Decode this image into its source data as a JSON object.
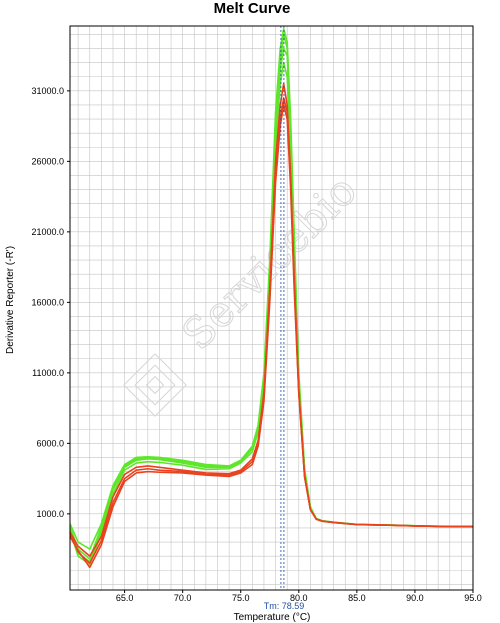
{
  "chart_data": {
    "type": "line",
    "title": "Melt Curve",
    "xlabel": "Temperature (°C)",
    "ylabel": "Derivative Reporter (-R')",
    "xlim": [
      60.3,
      95.0
    ],
    "ylim": [
      -4400,
      35600
    ],
    "x_ticks": [
      "65.0",
      "70.0",
      "75.0",
      "80.0",
      "85.0",
      "90.0",
      "95.0"
    ],
    "y_ticks": [
      "1000.0",
      "6000.0",
      "11000.0",
      "16000.0",
      "21000.0",
      "26000.0",
      "31000.0"
    ],
    "grid": true,
    "tm_marker": {
      "label": "Tm: 78.59",
      "x": 78.59
    },
    "watermark": "Servicebio",
    "colors": {
      "green": "#5ee62a",
      "red": "#e8421f",
      "marker": "#1f4fa8",
      "grid": "#c4c4c4"
    },
    "series": [
      {
        "color": "#5ee62a",
        "x": [
          60.3,
          61.0,
          62.0,
          63.0,
          64.0,
          65.0,
          66.0,
          67.0,
          68.0,
          70.0,
          72.0,
          74.0,
          75.0,
          76.0,
          76.5,
          77.0,
          77.5,
          78.0,
          78.4,
          78.7,
          79.0,
          79.3,
          79.6,
          80.0,
          80.5,
          81.0,
          81.5,
          82.0,
          83.0,
          85.0,
          88.0,
          90.0,
          92.0,
          95.0
        ],
        "y": [
          0,
          -1800,
          -2400,
          -100,
          2700,
          4300,
          4800,
          4900,
          4850,
          4600,
          4300,
          4300,
          4700,
          5600,
          7000,
          10500,
          18000,
          28000,
          33000,
          35000,
          34000,
          28000,
          20000,
          10500,
          4000,
          1400,
          650,
          500,
          400,
          250,
          200,
          150,
          120,
          100
        ]
      },
      {
        "color": "#e8421f",
        "x": [
          60.3,
          61.0,
          62.0,
          63.0,
          64.0,
          65.0,
          66.0,
          67.0,
          68.0,
          70.0,
          72.0,
          74.0,
          75.0,
          76.0,
          76.5,
          77.0,
          77.5,
          78.0,
          78.4,
          78.7,
          79.0,
          79.3,
          79.6,
          80.0,
          80.5,
          81.0,
          81.5,
          82.0,
          83.0,
          85.0,
          88.0,
          90.0,
          92.0,
          95.0
        ],
        "y": [
          -600,
          -1600,
          -2800,
          -1200,
          1500,
          3300,
          3900,
          4000,
          3950,
          3900,
          3750,
          3650,
          3900,
          4500,
          5800,
          9000,
          16000,
          24500,
          28500,
          30000,
          29000,
          24000,
          17000,
          9500,
          3600,
          1300,
          620,
          480,
          380,
          240,
          190,
          140,
          110,
          100
        ]
      },
      {
        "color": "#e8421f",
        "x": [
          60.3,
          61.0,
          62.0,
          63.0,
          64.0,
          65.0,
          66.0,
          67.0,
          68.0,
          70.0,
          72.0,
          74.0,
          75.0,
          76.0,
          76.5,
          77.0,
          77.5,
          78.0,
          78.4,
          78.7,
          79.0,
          79.3,
          79.6,
          80.0,
          80.5,
          81.0,
          81.5,
          82.0,
          83.0,
          85.0,
          88.0,
          90.0,
          92.0,
          95.0
        ],
        "y": [
          -300,
          -1300,
          -2000,
          -600,
          2200,
          3800,
          4300,
          4400,
          4300,
          4100,
          3900,
          3850,
          4100,
          4900,
          6200,
          9600,
          17000,
          26000,
          30000,
          31500,
          30000,
          25000,
          18000,
          9800,
          3700,
          1300,
          640,
          490,
          390,
          245,
          195,
          145,
          115,
          100
        ]
      },
      {
        "color": "#5ee62a",
        "x": [
          60.3,
          61.0,
          62.0,
          63.0,
          64.0,
          65.0,
          66.0,
          67.0,
          68.0,
          70.0,
          72.0,
          74.0,
          75.0,
          76.0,
          76.5,
          77.0,
          77.5,
          78.0,
          78.4,
          78.7,
          79.0,
          79.3,
          79.6,
          80.0,
          80.5,
          81.0,
          81.5,
          82.0,
          83.0,
          85.0,
          88.0,
          90.0,
          92.0,
          95.0
        ],
        "y": [
          300,
          -1000,
          -1500,
          300,
          3000,
          4500,
          5000,
          5050,
          5000,
          4800,
          4500,
          4400,
          4800,
          5800,
          7300,
          11000,
          19000,
          29500,
          34000,
          35400,
          34500,
          29000,
          21000,
          11000,
          4200,
          1500,
          680,
          520,
          410,
          255,
          205,
          155,
          125,
          100
        ]
      },
      {
        "color": "#5ee62a",
        "x": [
          60.3,
          61.0,
          62.0,
          63.0,
          64.0,
          65.0,
          66.0,
          67.0,
          68.0,
          70.0,
          72.0,
          74.0,
          75.0,
          76.0,
          76.5,
          77.0,
          77.5,
          78.0,
          78.4,
          78.7,
          79.0,
          79.3,
          79.6,
          80.0,
          80.5,
          81.0,
          81.5,
          82.0,
          83.0,
          85.0,
          88.0,
          90.0,
          92.0,
          95.0
        ],
        "y": [
          -200,
          -2000,
          -2600,
          -400,
          2400,
          4100,
          4600,
          4700,
          4650,
          4450,
          4150,
          4200,
          4600,
          5400,
          6800,
          10200,
          17500,
          27000,
          31500,
          33000,
          32000,
          27000,
          19500,
          10300,
          3900,
          1400,
          650,
          500,
          400,
          250,
          200,
          150,
          120,
          100
        ]
      },
      {
        "color": "#5ee62a",
        "x": [
          60.3,
          61.0,
          62.0,
          63.0,
          64.0,
          65.0,
          66.0,
          67.0,
          68.0,
          70.0,
          72.0,
          74.0,
          75.0,
          76.0,
          76.5,
          77.0,
          77.5,
          78.0,
          78.4,
          78.7,
          79.0,
          79.3,
          79.6,
          80.0,
          80.5,
          81.0,
          81.5,
          82.0,
          83.0,
          85.0,
          88.0,
          90.0,
          92.0,
          95.0
        ],
        "y": [
          100,
          -1500,
          -2200,
          100,
          2800,
          4400,
          4900,
          5000,
          4950,
          4700,
          4400,
          4350,
          4750,
          5700,
          7100,
          10800,
          18500,
          28700,
          32500,
          34000,
          33500,
          28500,
          20500,
          10700,
          4100,
          1450,
          660,
          510,
          405,
          252,
          202,
          152,
          122,
          100
        ]
      },
      {
        "color": "#e8421f",
        "x": [
          60.3,
          61.0,
          62.0,
          63.0,
          64.0,
          65.0,
          66.0,
          67.0,
          68.0,
          70.0,
          72.0,
          74.0,
          75.0,
          76.0,
          76.5,
          77.0,
          77.5,
          78.0,
          78.4,
          78.7,
          79.0,
          79.3,
          79.6,
          80.0,
          80.5,
          81.0,
          81.5,
          82.0,
          83.0,
          85.0,
          88.0,
          90.0,
          92.0,
          95.0
        ],
        "y": [
          -400,
          -1700,
          -2500,
          -900,
          1800,
          3500,
          4100,
          4200,
          4100,
          4000,
          3800,
          3750,
          4000,
          4700,
          6000,
          9300,
          16500,
          25000,
          29000,
          30500,
          29500,
          24500,
          17500,
          9600,
          3650,
          1300,
          630,
          485,
          385,
          242,
          192,
          142,
          112,
          100
        ]
      }
    ]
  }
}
